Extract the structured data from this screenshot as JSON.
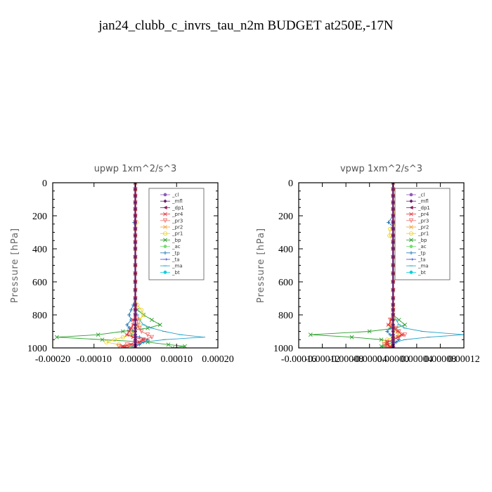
{
  "title": "jan24_clubb_c_invrs_tau_n2m  BUDGET at250E,-17N",
  "legend": [
    {
      "name": "_cl",
      "color": "#8e5bb5",
      "marker": "circle"
    },
    {
      "name": "_mfl",
      "color": "#6a1b6a",
      "marker": "diamond"
    },
    {
      "name": "_dp1",
      "color": "#8b1a5a",
      "marker": "tri-left"
    },
    {
      "name": "_pr4",
      "color": "#e0303a",
      "marker": "star"
    },
    {
      "name": "_pr3",
      "color": "#f06a6a",
      "marker": "tri-down"
    },
    {
      "name": "_pr2",
      "color": "#f0a030",
      "marker": "star"
    },
    {
      "name": "_pr1",
      "color": "#e8d020",
      "marker": "circle-open"
    },
    {
      "name": "_bp",
      "color": "#2ca02c",
      "marker": "x"
    },
    {
      "name": "_ac",
      "color": "#6fe06f",
      "marker": "circle"
    },
    {
      "name": "_tp",
      "color": "#1f77b4",
      "marker": "plus"
    },
    {
      "name": "_ta",
      "color": "#3a4fd8",
      "marker": "arrow"
    },
    {
      "name": "_ma",
      "color": "#2aa3c9",
      "marker": "dash"
    },
    {
      "name": "_bt",
      "color": "#00d0e0",
      "marker": "circle"
    }
  ],
  "chart_data": [
    {
      "type": "line",
      "title": "upwp   1xm^2/s^3",
      "ylabel": "Pressure [hPa]",
      "xlabel": "",
      "xlim": [
        -0.0002,
        0.0002
      ],
      "ylim": [
        1000,
        0
      ],
      "xticks": [
        "-0.00020",
        "-0.00010",
        "0.00000",
        "0.00010",
        "0.00020"
      ],
      "yticks": [
        "0",
        "200",
        "400",
        "600",
        "800",
        "1000"
      ],
      "pressure": [
        0,
        40,
        80,
        120,
        160,
        200,
        240,
        280,
        320,
        360,
        400,
        450,
        500,
        550,
        600,
        650,
        700,
        740,
        770,
        800,
        830,
        860,
        880,
        900,
        920,
        935,
        950,
        965,
        980,
        990,
        1000
      ],
      "series": [
        {
          "name": "_bp",
          "values": [
            0,
            0,
            0,
            0,
            0,
            0,
            0,
            0,
            0,
            0,
            0,
            0,
            0,
            0,
            0,
            0,
            0,
            0,
            5e-06,
            2e-05,
            4e-05,
            6e-05,
            3e-05,
            -3e-05,
            -9e-05,
            -0.00019,
            -8e-05,
            3e-05,
            8e-05,
            0.00012,
            9e-05
          ]
        },
        {
          "name": "_ma",
          "values": [
            0,
            0,
            0,
            0,
            0,
            0,
            0,
            0,
            0,
            0,
            0,
            0,
            0,
            0,
            0,
            0,
            0,
            0,
            0,
            5e-06,
            1e-05,
            2e-05,
            4e-05,
            7e-05,
            0.00011,
            0.000165,
            7e-05,
            2e-05,
            0,
            -1e-05,
            0
          ]
        },
        {
          "name": "_tp",
          "values": [
            0,
            0,
            0,
            0,
            0,
            0,
            -3e-06,
            0,
            0,
            0,
            0,
            0,
            0,
            0,
            0,
            0,
            0,
            -5e-06,
            -1e-05,
            -1.5e-05,
            -1e-05,
            -2e-05,
            -1.5e-05,
            -5e-06,
            -1e-05,
            1e-05,
            3e-05,
            2e-05,
            1e-05,
            0,
            0
          ]
        },
        {
          "name": "_pr1",
          "values": [
            0,
            0,
            0,
            0,
            0,
            0,
            3e-06,
            0,
            0,
            0,
            0,
            0,
            0,
            0,
            0,
            0,
            0,
            5e-06,
            1.5e-05,
            2e-05,
            1e-05,
            1e-05,
            5e-06,
            -5e-06,
            -1e-05,
            -3e-05,
            -5e-05,
            -7e-05,
            -4e-05,
            -2e-05,
            0
          ]
        },
        {
          "name": "_pr3",
          "values": [
            0,
            0,
            0,
            0,
            0,
            0,
            0,
            0,
            0,
            0,
            0,
            0,
            0,
            0,
            0,
            0,
            0,
            0,
            0,
            0,
            5e-06,
            5e-06,
            1e-05,
            1.5e-05,
            3e-05,
            4e-05,
            2e-05,
            0,
            -2e-05,
            -4e-05,
            -2e-05
          ]
        },
        {
          "name": "_pr4",
          "values": [
            0,
            0,
            0,
            0,
            0,
            0,
            0,
            0,
            0,
            0,
            0,
            0,
            0,
            0,
            0,
            0,
            0,
            0,
            0,
            0,
            -5e-06,
            -5e-06,
            -1e-05,
            -1.5e-05,
            -2e-05,
            -5e-06,
            2e-05,
            1e-05,
            -1e-05,
            -3e-05,
            -2e-05
          ]
        },
        {
          "name": "_cl",
          "values": [
            0,
            0,
            0,
            0,
            0,
            0,
            0,
            0,
            0,
            0,
            0,
            0,
            0,
            0,
            0,
            0,
            0,
            0,
            0,
            0,
            0,
            0,
            0,
            0,
            0,
            0,
            0,
            0,
            0,
            0,
            0
          ]
        },
        {
          "name": "_mfl",
          "values": [
            0,
            0,
            0,
            0,
            0,
            0,
            0,
            0,
            0,
            0,
            0,
            0,
            0,
            0,
            0,
            0,
            0,
            0,
            0,
            0,
            0,
            0,
            0,
            0,
            0,
            0,
            0,
            0,
            0,
            0,
            0
          ]
        }
      ]
    },
    {
      "type": "line",
      "title": "vpwp   1xm^2/s^3",
      "ylabel": "Pressure [hPa]",
      "xlabel": "",
      "xlim": [
        -0.00016,
        0.00012
      ],
      "ylim": [
        1000,
        0
      ],
      "xticks": [
        "-0.00016",
        "-0.00012",
        "-0.00008",
        "-0.00004",
        "0.00000",
        "0.00004",
        "0.00008",
        "0.00012"
      ],
      "yticks": [
        "0",
        "200",
        "400",
        "600",
        "800",
        "1000"
      ],
      "pressure": [
        0,
        40,
        80,
        120,
        160,
        200,
        240,
        280,
        320,
        360,
        400,
        450,
        500,
        550,
        600,
        650,
        700,
        740,
        770,
        800,
        830,
        860,
        880,
        900,
        920,
        935,
        950,
        965,
        980,
        990,
        1000
      ],
      "series": [
        {
          "name": "_bp",
          "values": [
            0,
            0,
            0,
            0,
            0,
            0,
            0,
            0,
            0,
            0,
            0,
            0,
            0,
            0,
            0,
            0,
            0,
            0,
            0,
            0,
            1e-05,
            2e-05,
            5e-06,
            -4e-05,
            -0.00014,
            -7e-05,
            -2e-05,
            0,
            -1e-05,
            -2e-05,
            -5e-06
          ]
        },
        {
          "name": "_ma",
          "values": [
            0,
            0,
            0,
            0,
            0,
            0,
            0,
            0,
            0,
            0,
            0,
            0,
            0,
            0,
            0,
            0,
            0,
            0,
            0,
            0,
            5e-06,
            1e-05,
            2e-05,
            5e-05,
            0.00012,
            6e-05,
            2e-05,
            5e-06,
            0,
            0,
            0
          ]
        },
        {
          "name": "_tp",
          "values": [
            0,
            0,
            0,
            0,
            0,
            0,
            -8e-06,
            4e-06,
            6e-06,
            0,
            0,
            0,
            0,
            0,
            0,
            0,
            0,
            0,
            0,
            0,
            0,
            0,
            -5e-06,
            -1e-05,
            -5e-06,
            0,
            1e-05,
            5e-06,
            0,
            0,
            0
          ]
        },
        {
          "name": "_pr1",
          "values": [
            0,
            0,
            0,
            0,
            0,
            4e-06,
            6e-06,
            -5e-06,
            -6e-06,
            0,
            0,
            0,
            0,
            0,
            0,
            0,
            0,
            0,
            0,
            0,
            0,
            -5e-06,
            0,
            5e-06,
            1e-05,
            0,
            -1e-05,
            -1.5e-05,
            -1e-05,
            -5e-06,
            0
          ]
        },
        {
          "name": "_pr3",
          "values": [
            0,
            0,
            0,
            0,
            0,
            0,
            0,
            0,
            0,
            0,
            0,
            0,
            0,
            0,
            0,
            0,
            0,
            0,
            0,
            0,
            -5e-06,
            -3e-06,
            5e-06,
            1e-05,
            2e-05,
            1e-05,
            0,
            -1e-05,
            -1.5e-05,
            -1e-05,
            0
          ]
        },
        {
          "name": "_pr4",
          "values": [
            0,
            0,
            0,
            0,
            0,
            0,
            0,
            0,
            0,
            0,
            0,
            0,
            0,
            0,
            0,
            0,
            0,
            0,
            0,
            0,
            -3e-06,
            -8e-06,
            0,
            8e-06,
            1.5e-05,
            8e-06,
            0,
            -1e-05,
            -1e-05,
            -5e-06,
            0
          ]
        },
        {
          "name": "_cl",
          "values": [
            0,
            0,
            0,
            0,
            0,
            0,
            0,
            0,
            0,
            0,
            0,
            0,
            0,
            0,
            0,
            0,
            0,
            0,
            0,
            0,
            0,
            0,
            0,
            0,
            0,
            0,
            0,
            0,
            0,
            0,
            0
          ]
        },
        {
          "name": "_mfl",
          "values": [
            0,
            0,
            0,
            0,
            0,
            0,
            0,
            0,
            0,
            0,
            0,
            0,
            0,
            0,
            0,
            0,
            0,
            0,
            0,
            0,
            0,
            0,
            0,
            0,
            0,
            0,
            0,
            0,
            0,
            0,
            0
          ]
        }
      ]
    }
  ]
}
